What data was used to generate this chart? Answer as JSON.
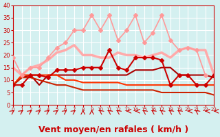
{
  "background_color": "#d4f0f0",
  "grid_color": "#ffffff",
  "xlabel": "Vent moyen/en rafales ( km/h )",
  "xlabel_color": "#cc0000",
  "xlabel_fontsize": 9,
  "tick_color": "#cc0000",
  "yticks": [
    0,
    5,
    10,
    15,
    20,
    25,
    30,
    35,
    40
  ],
  "xticks": [
    0,
    1,
    2,
    3,
    4,
    5,
    6,
    7,
    8,
    9,
    10,
    11,
    12,
    13,
    14,
    15,
    16,
    17,
    18,
    19,
    20,
    21,
    22,
    23
  ],
  "xlim": [
    0,
    23
  ],
  "ylim": [
    0,
    40
  ],
  "series": [
    {
      "x": [
        0,
        1,
        2,
        3,
        4,
        5,
        6,
        7,
        8,
        9,
        10,
        11,
        12,
        13,
        14,
        15,
        16,
        17,
        18,
        19,
        20,
        21,
        22,
        23
      ],
      "y": [
        19,
        12,
        15,
        15,
        19,
        23,
        25,
        30,
        30,
        36,
        30,
        36,
        26,
        30,
        36,
        25,
        29,
        36,
        26,
        22,
        23,
        22,
        12,
        null
      ],
      "color": "#ff9999",
      "lw": 1.2,
      "marker": "D",
      "ms": 3
    },
    {
      "x": [
        0,
        1,
        2,
        3,
        4,
        5,
        6,
        7,
        8,
        9,
        10,
        11,
        12,
        13,
        14,
        15,
        16,
        17,
        18,
        19,
        20,
        21,
        22,
        23
      ],
      "y": [
        15,
        12,
        15,
        16,
        18,
        21,
        22,
        24,
        20,
        20,
        19,
        19,
        21,
        20,
        20,
        19,
        20,
        21,
        19,
        22,
        23,
        22,
        22,
        12
      ],
      "color": "#ffaaaa",
      "lw": 2.5,
      "marker": null,
      "ms": 0
    },
    {
      "x": [
        0,
        1,
        2,
        3,
        4,
        5,
        6,
        7,
        8,
        9,
        10,
        11,
        12,
        13,
        14,
        15,
        16,
        17,
        18,
        19,
        20,
        21,
        22,
        23
      ],
      "y": [
        8,
        8,
        12,
        12,
        11,
        14,
        14,
        14,
        15,
        15,
        15,
        22,
        15,
        14,
        19,
        19,
        19,
        18,
        8,
        12,
        12,
        8,
        8,
        12
      ],
      "color": "#cc0000",
      "lw": 1.5,
      "marker": "D",
      "ms": 3
    },
    {
      "x": [
        0,
        1,
        2,
        3,
        4,
        5,
        6,
        7,
        8,
        9,
        10,
        11,
        12,
        13,
        14,
        15,
        16,
        17,
        18,
        19,
        20,
        21,
        22,
        23
      ],
      "y": [
        8,
        11,
        12,
        8,
        12,
        12,
        12,
        12,
        12,
        12,
        12,
        12,
        12,
        12,
        14,
        14,
        14,
        15,
        15,
        12,
        12,
        12,
        12,
        11
      ],
      "color": "#aa0000",
      "lw": 1.5,
      "marker": null,
      "ms": 0
    },
    {
      "x": [
        0,
        1,
        2,
        3,
        4,
        5,
        6,
        7,
        8,
        9,
        10,
        11,
        12,
        13,
        14,
        15,
        16,
        17,
        18,
        19,
        20,
        21,
        22,
        23
      ],
      "y": [
        8,
        12,
        12,
        12,
        12,
        12,
        10,
        10,
        9,
        9,
        9,
        9,
        9,
        8,
        8,
        8,
        8,
        8,
        8,
        8,
        8,
        8,
        8,
        8
      ],
      "color": "#ff3300",
      "lw": 1.5,
      "marker": null,
      "ms": 0
    },
    {
      "x": [
        0,
        1,
        2,
        3,
        4,
        5,
        6,
        7,
        8,
        9,
        10,
        11,
        12,
        13,
        14,
        15,
        16,
        17,
        18,
        19,
        20,
        21,
        22,
        23
      ],
      "y": [
        8,
        11,
        11,
        10,
        9,
        8,
        8,
        7,
        6,
        6,
        6,
        6,
        6,
        6,
        6,
        6,
        6,
        5,
        5,
        5,
        5,
        5,
        5,
        4
      ],
      "color": "#cc2200",
      "lw": 1.5,
      "marker": null,
      "ms": 0
    }
  ],
  "wind_arrows": {
    "x": [
      0,
      1,
      2,
      3,
      4,
      5,
      6,
      7,
      8,
      9,
      10,
      11,
      12,
      13,
      14,
      15,
      16,
      17,
      18,
      19,
      20,
      21,
      22,
      23
    ],
    "angles": [
      45,
      45,
      45,
      45,
      45,
      45,
      45,
      45,
      0,
      0,
      315,
      315,
      315,
      270,
      270,
      315,
      315,
      315,
      315,
      315,
      270,
      315,
      270,
      270
    ]
  }
}
